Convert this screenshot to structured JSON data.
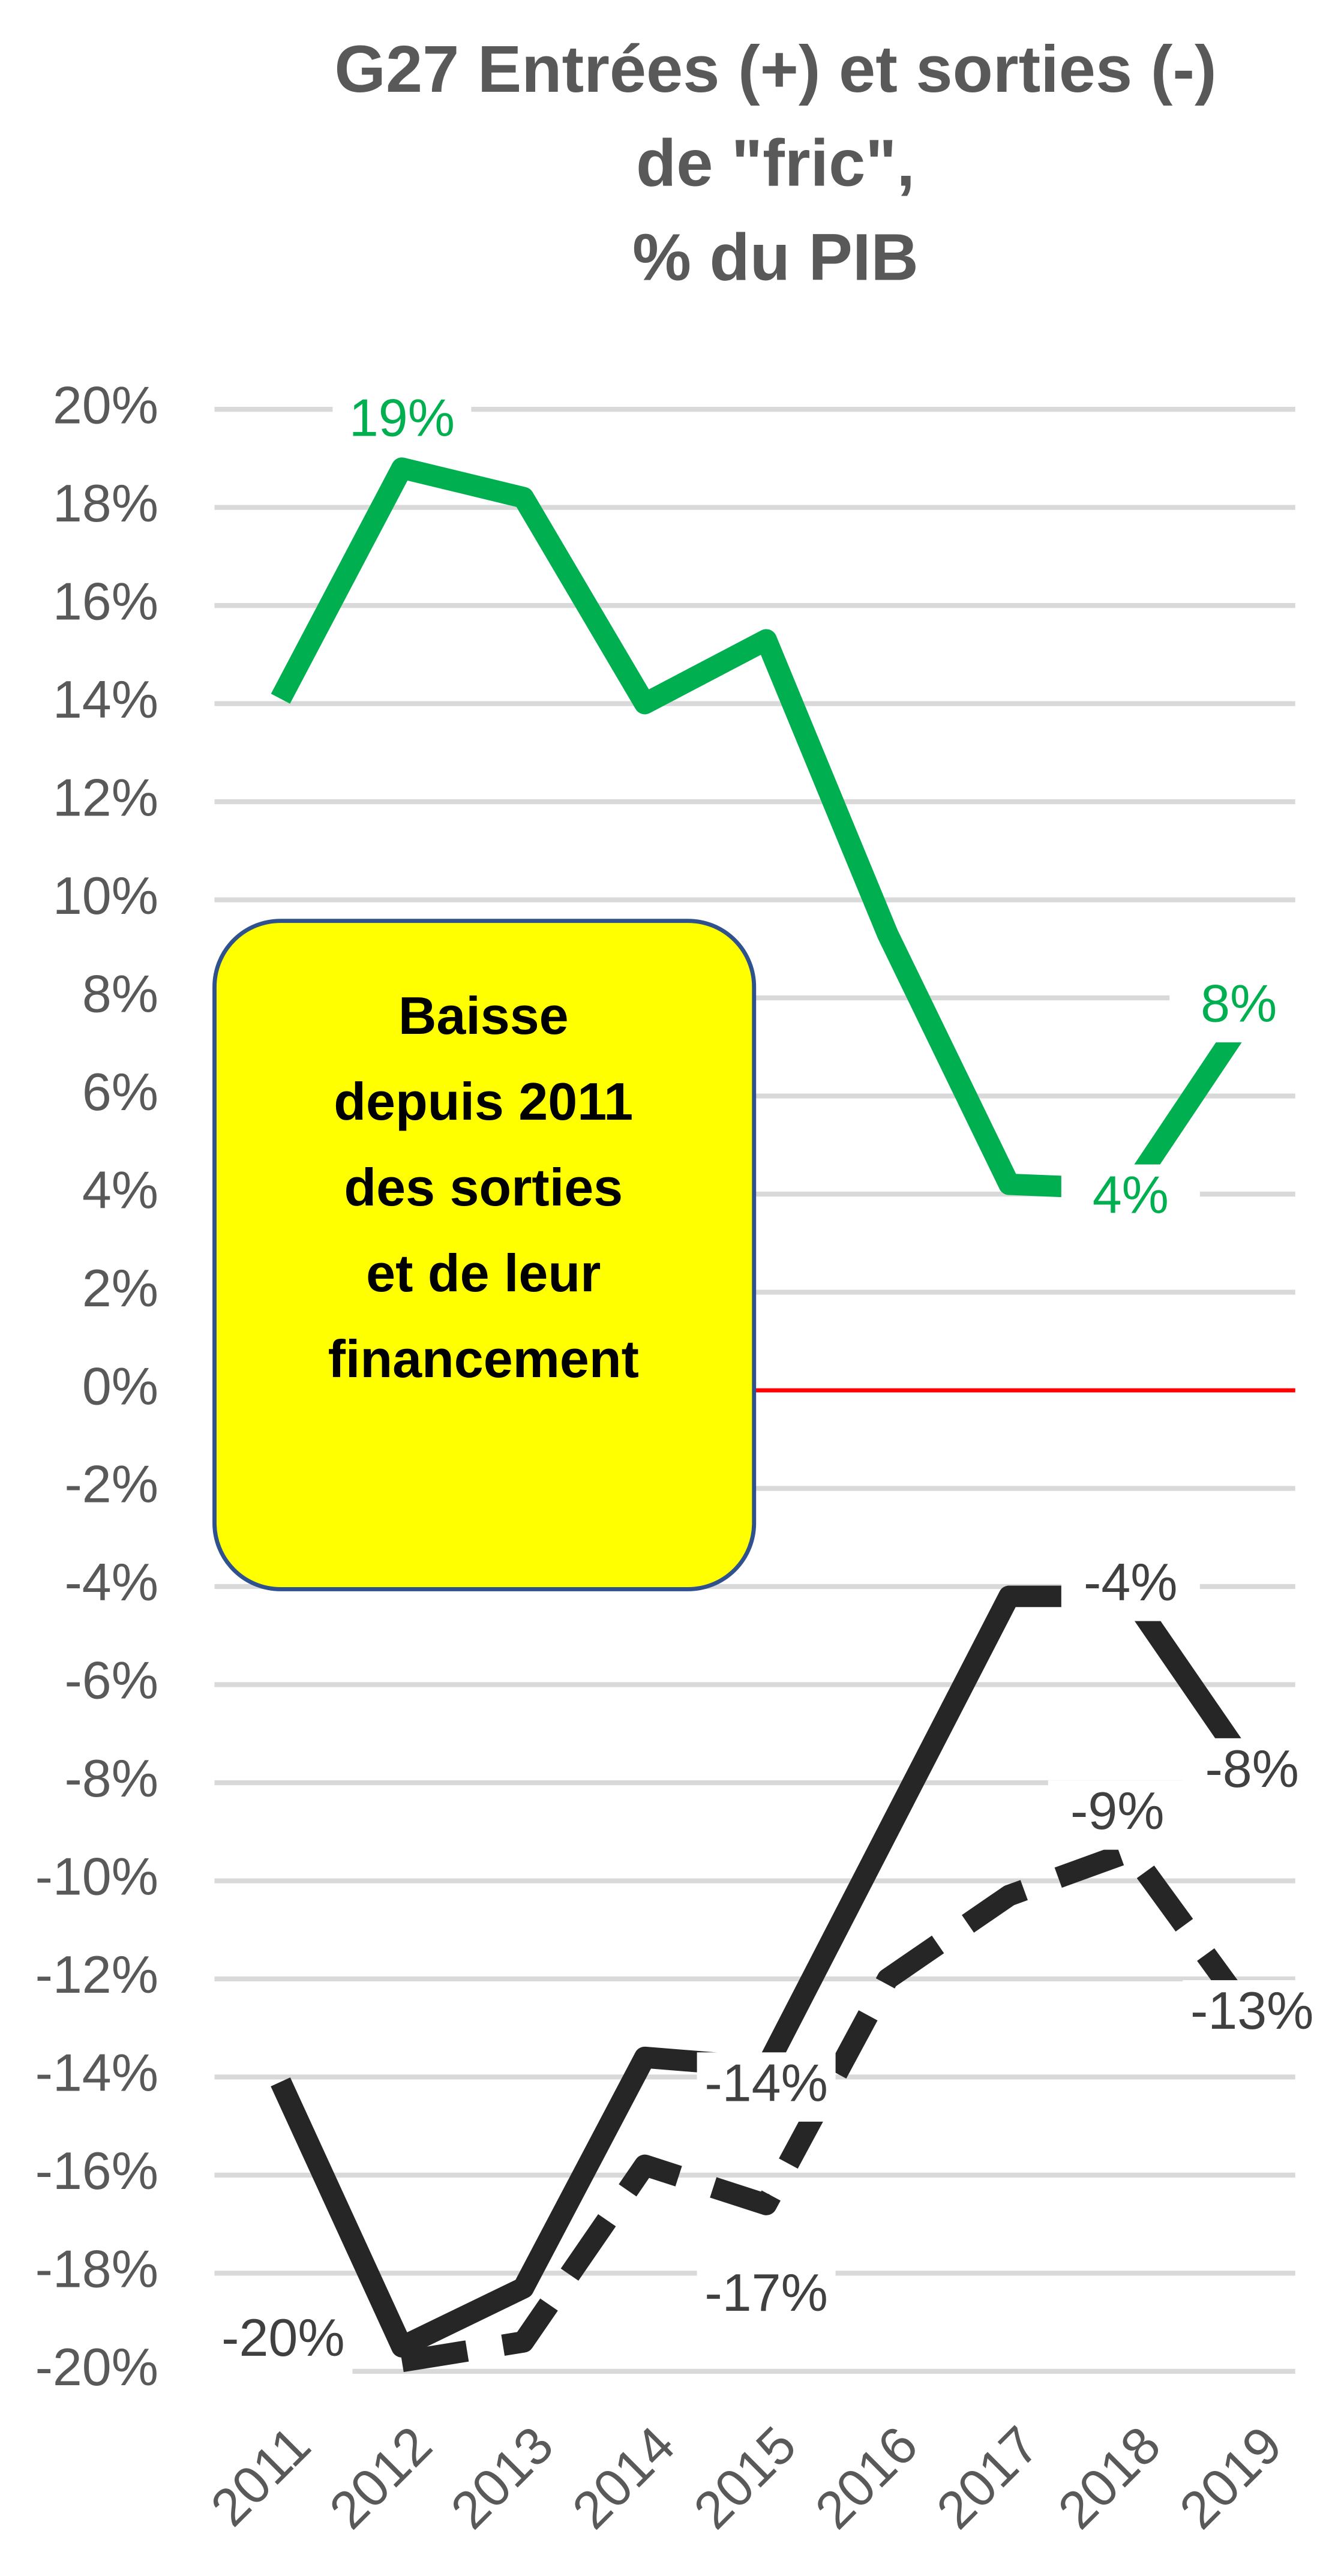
{
  "chart_data": {
    "type": "line",
    "title": [
      "G27  Entrées (+) et sorties (-)",
      "de \"fric\",",
      "% du PIB"
    ],
    "categories": [
      "2011",
      "2012",
      "2013",
      "2014",
      "2015",
      "2016",
      "2017",
      "2018",
      "2019"
    ],
    "series": [
      {
        "color": "#00b050",
        "dash": false,
        "values": [
          14.1,
          18.8,
          18.2,
          14.0,
          15.3,
          9.3,
          4.2,
          4.1,
          7.8
        ],
        "value_labels": [
          null,
          "19%",
          null,
          null,
          null,
          null,
          null,
          "4%",
          "8%"
        ]
      },
      {
        "color": "#262626",
        "dash": false,
        "values": [
          -14.1,
          -19.5,
          -18.3,
          -13.6,
          -13.8,
          -9.0,
          -4.2,
          -4.2,
          -7.8
        ],
        "value_labels": [
          null,
          null,
          null,
          null,
          "-14%",
          null,
          null,
          "-4%",
          "-8%"
        ]
      },
      {
        "color": "#262626",
        "dash": true,
        "values": [
          null,
          -19.8,
          -19.4,
          -15.8,
          -16.6,
          -12.0,
          -10.3,
          -9.4,
          -12.8
        ],
        "value_labels": [
          null,
          "-20%",
          null,
          null,
          "-17%",
          null,
          null,
          "-9%",
          "-13%"
        ]
      }
    ],
    "ylim": [
      -20,
      20
    ],
    "yticks": [
      {
        "value": -20,
        "label": "-20%"
      },
      {
        "value": -18,
        "label": "-18%"
      },
      {
        "value": -16,
        "label": "-16%"
      },
      {
        "value": -14,
        "label": "-14%"
      },
      {
        "value": -12,
        "label": "-12%"
      },
      {
        "value": -10,
        "label": "-10%"
      },
      {
        "value": -8,
        "label": "-8%"
      },
      {
        "value": -6,
        "label": "-6%"
      },
      {
        "value": -4,
        "label": "-4%"
      },
      {
        "value": -2,
        "label": "-2%"
      },
      {
        "value": 0,
        "label": "0%"
      },
      {
        "value": 2,
        "label": "2%"
      },
      {
        "value": 4,
        "label": "4%"
      },
      {
        "value": 6,
        "label": "6%"
      },
      {
        "value": 8,
        "label": "8%"
      },
      {
        "value": 10,
        "label": "10%"
      },
      {
        "value": 12,
        "label": "12%"
      },
      {
        "value": 14,
        "label": "14%"
      },
      {
        "value": 16,
        "label": "16%"
      },
      {
        "value": 18,
        "label": "18%"
      },
      {
        "value": 20,
        "label": "20%"
      }
    ],
    "grid": true,
    "zero_line_color": "#ff0000",
    "annotation": [
      "Baisse",
      "depuis 2011",
      "des sorties",
      "et de leur",
      "financement"
    ],
    "annotation_color": "#ffff00"
  }
}
